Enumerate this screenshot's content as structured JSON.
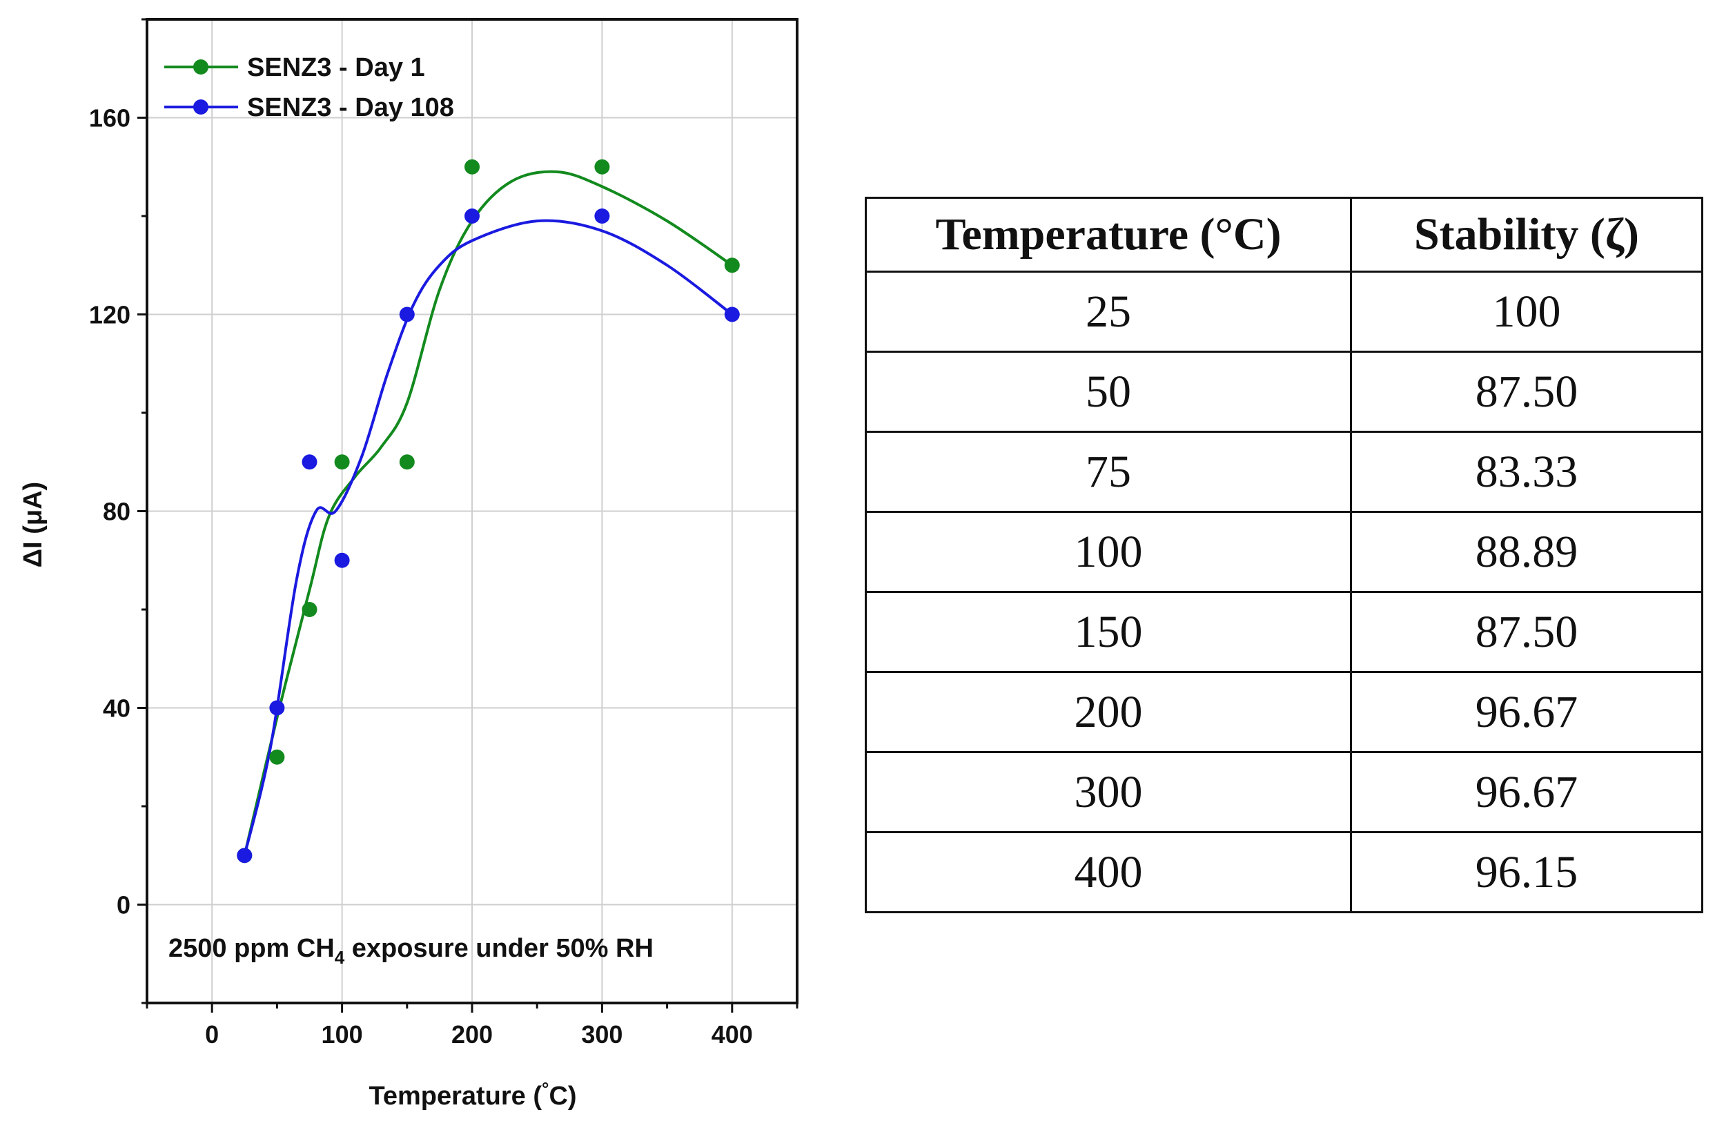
{
  "chart_data": {
    "type": "scatter",
    "xlabel_main": "Temperature (",
    "xlabel_deg": "°",
    "xlabel_unit": "C)",
    "ylabel": "ΔI (μA)",
    "xlim": [
      -50,
      450
    ],
    "ylim": [
      -20,
      180
    ],
    "x_ticks": [
      0,
      100,
      200,
      300,
      400
    ],
    "y_ticks": [
      0,
      40,
      80,
      120,
      160
    ],
    "grid": true,
    "legend_position": "top-left",
    "annotation": {
      "prefix": "2500 ppm CH",
      "subscript": "4",
      "suffix": " exposure under 50% RH"
    },
    "series": [
      {
        "name": "SENZ3 - Day 1",
        "color": "#138a1e",
        "x": [
          25,
          50,
          75,
          100,
          150,
          200,
          300,
          400
        ],
        "y": [
          10,
          30,
          60,
          90,
          90,
          150,
          150,
          130
        ]
      },
      {
        "name": "SENZ3 - Day 108",
        "color": "#1a1ae0",
        "x": [
          25,
          50,
          75,
          100,
          150,
          200,
          300,
          400
        ],
        "y": [
          10,
          40,
          90,
          70,
          120,
          140,
          140,
          120
        ]
      }
    ],
    "fit_curves": [
      {
        "series": "SENZ3 - Day 1",
        "x": [
          25,
          50,
          75,
          90,
          110,
          130,
          150,
          175,
          200,
          230,
          265,
          300,
          350,
          400
        ],
        "y": [
          10,
          38,
          64,
          79,
          87,
          93,
          102,
          125,
          139,
          147,
          149,
          146,
          139,
          130
        ]
      },
      {
        "series": "SENZ3 - Day 108",
        "x": [
          25,
          45,
          65,
          80,
          95,
          115,
          135,
          155,
          175,
          200,
          250,
          300,
          350,
          400
        ],
        "y": [
          10,
          32,
          66,
          80,
          80,
          91,
          108,
          122,
          130,
          135,
          139,
          137,
          130,
          120
        ]
      }
    ]
  },
  "table": {
    "headers": [
      "Temperature (°C)",
      "Stability (ζ)"
    ],
    "rows": [
      [
        "25",
        "100"
      ],
      [
        "50",
        "87.50"
      ],
      [
        "75",
        "83.33"
      ],
      [
        "100",
        "88.89"
      ],
      [
        "150",
        "87.50"
      ],
      [
        "200",
        "96.67"
      ],
      [
        "300",
        "96.67"
      ],
      [
        "400",
        "96.15"
      ]
    ]
  }
}
